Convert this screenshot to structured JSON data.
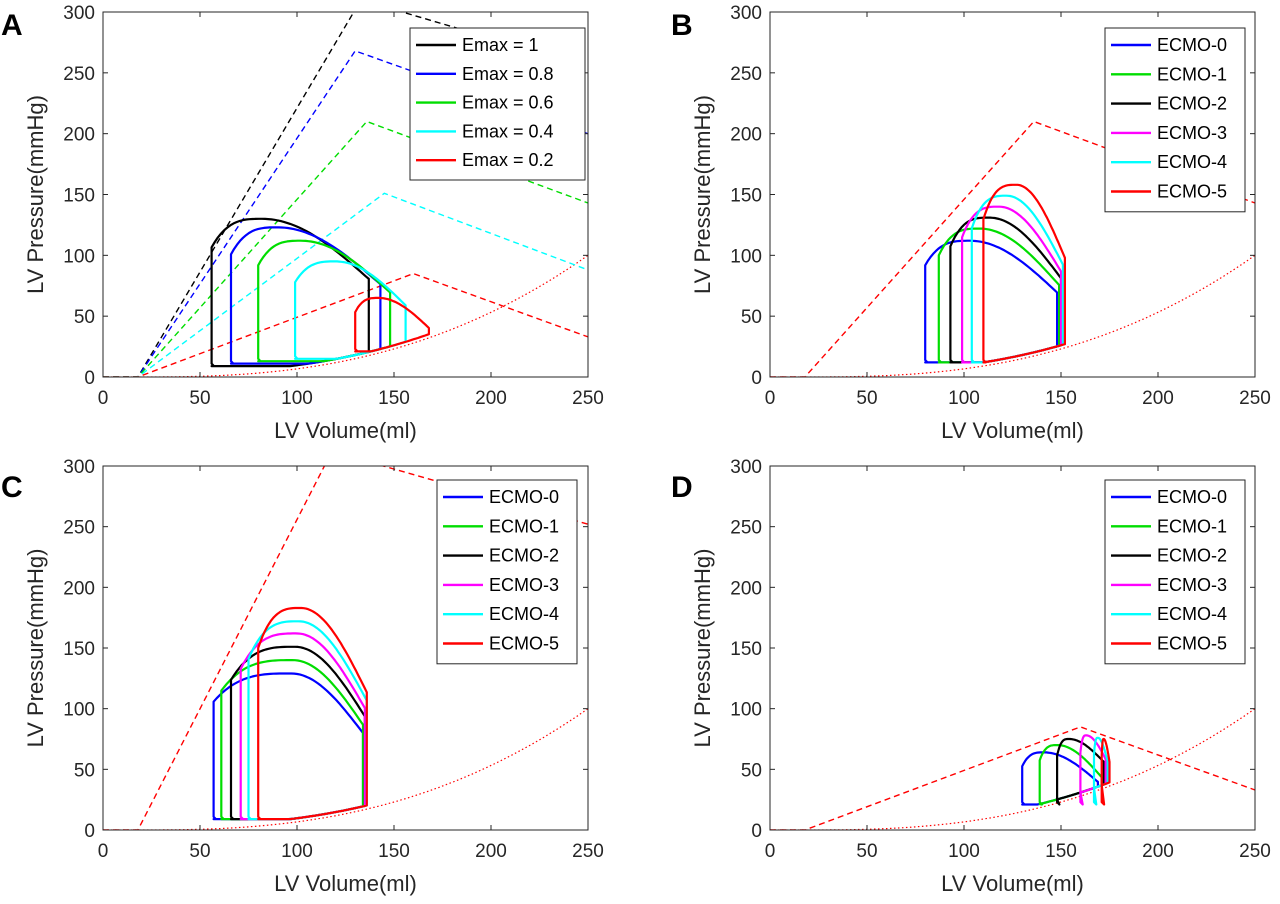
{
  "chart_data": [
    {
      "panel": "A",
      "type": "line",
      "xlabel": "LV Volume(ml)",
      "ylabel": "LV Pressure(mmHg)",
      "xlim": [
        0,
        250
      ],
      "ylim": [
        0,
        300
      ],
      "xticks": [
        0,
        50,
        100,
        150,
        200,
        250
      ],
      "yticks": [
        0,
        50,
        100,
        150,
        200,
        250,
        300
      ],
      "legend_position": "top-right",
      "espvr": {
        "v0": 18,
        "peak": [
          [
            133,
            310
          ],
          [
            130,
            268
          ],
          [
            136,
            210
          ],
          [
            145,
            151
          ],
          [
            160,
            85
          ]
        ],
        "end": [
          [
            250,
            255
          ],
          [
            250,
            200
          ],
          [
            250,
            143
          ],
          [
            250,
            88
          ],
          [
            250,
            33
          ]
        ]
      },
      "edpvr": {
        "v0": 18,
        "p250": 100
      },
      "series": [
        {
          "name": "Emax = 1",
          "color": "#000000",
          "ves": 56,
          "ved": 137,
          "psys": 130,
          "pmin": 9,
          "vpk": 82,
          "ped_beg": 9
        },
        {
          "name": "Emax = 0.8",
          "color": "#0000ff",
          "ves": 66,
          "ved": 143,
          "psys": 123,
          "pmin": 11,
          "vpk": 90,
          "ped_beg": 11
        },
        {
          "name": "Emax = 0.6",
          "color": "#00dd00",
          "ves": 80,
          "ved": 148,
          "psys": 112,
          "pmin": 13,
          "vpk": 102,
          "ped_beg": 13
        },
        {
          "name": "Emax = 0.4",
          "color": "#00ffff",
          "ves": 99,
          "ved": 156,
          "psys": 95,
          "pmin": 15,
          "vpk": 120,
          "ped_beg": 15
        },
        {
          "name": "Emax = 0.2",
          "color": "#ff0000",
          "ves": 130,
          "ved": 168,
          "psys": 65,
          "pmin": 21,
          "vpk": 142,
          "ped_beg": 21
        }
      ]
    },
    {
      "panel": "B",
      "type": "line",
      "xlabel": "LV Volume(ml)",
      "ylabel": "LV Pressure(mmHg)",
      "xlim": [
        0,
        250
      ],
      "ylim": [
        0,
        300
      ],
      "xticks": [
        0,
        50,
        100,
        150,
        200,
        250
      ],
      "yticks": [
        0,
        50,
        100,
        150,
        200,
        250,
        300
      ],
      "legend_position": "top-right",
      "espvr": {
        "v0": 18,
        "peak": [
          [
            136,
            210
          ]
        ],
        "end": [
          [
            250,
            143
          ]
        ]
      },
      "edpvr": {
        "v0": 18,
        "p250": 100
      },
      "series": [
        {
          "name": "ECMO-0",
          "color": "#0000ff",
          "ves": 80,
          "ved": 148,
          "psys": 112,
          "pmin": 12,
          "vpk": 103,
          "ped_beg": 12
        },
        {
          "name": "ECMO-1",
          "color": "#00dd00",
          "ves": 87,
          "ved": 149,
          "psys": 122,
          "pmin": 12,
          "vpk": 108,
          "ped_beg": 12
        },
        {
          "name": "ECMO-2",
          "color": "#000000",
          "ves": 93,
          "ved": 150,
          "psys": 131,
          "pmin": 12,
          "vpk": 113,
          "ped_beg": 12
        },
        {
          "name": "ECMO-3",
          "color": "#ff00ff",
          "ves": 99,
          "ved": 150,
          "psys": 140,
          "pmin": 12,
          "vpk": 118,
          "ped_beg": 12
        },
        {
          "name": "ECMO-4",
          "color": "#00ffff",
          "ves": 104,
          "ved": 151,
          "psys": 149,
          "pmin": 12,
          "vpk": 122,
          "ped_beg": 12
        },
        {
          "name": "ECMO-5",
          "color": "#ff0000",
          "ves": 110,
          "ved": 152,
          "psys": 158,
          "pmin": 12,
          "vpk": 127,
          "ped_beg": 12
        }
      ]
    },
    {
      "panel": "C",
      "type": "line",
      "xlabel": "LV Volume(ml)",
      "ylabel": "LV Pressure(mmHg)",
      "xlim": [
        0,
        250
      ],
      "ylim": [
        0,
        300
      ],
      "xticks": [
        0,
        50,
        100,
        150,
        200,
        250
      ],
      "yticks": [
        0,
        50,
        100,
        150,
        200,
        250,
        300
      ],
      "legend_position": "top-right",
      "espvr": {
        "v0": 18,
        "peak": [
          [
            118,
            312
          ]
        ],
        "end": [
          [
            250,
            252
          ]
        ]
      },
      "edpvr": {
        "v0": 18,
        "p250": 100
      },
      "series": [
        {
          "name": "ECMO-0",
          "color": "#0000ff",
          "ves": 57,
          "ved": 134,
          "psys": 129,
          "pmin": 9,
          "vpk": 97,
          "ped_beg": 9
        },
        {
          "name": "ECMO-1",
          "color": "#00dd00",
          "ves": 61,
          "ved": 134,
          "psys": 140,
          "pmin": 9,
          "vpk": 98,
          "ped_beg": 9
        },
        {
          "name": "ECMO-2",
          "color": "#000000",
          "ves": 66,
          "ved": 135,
          "psys": 151,
          "pmin": 9,
          "vpk": 99,
          "ped_beg": 9
        },
        {
          "name": "ECMO-3",
          "color": "#ff00ff",
          "ves": 71,
          "ved": 135,
          "psys": 162,
          "pmin": 9,
          "vpk": 100,
          "ped_beg": 9
        },
        {
          "name": "ECMO-4",
          "color": "#00ffff",
          "ves": 75,
          "ved": 136,
          "psys": 172,
          "pmin": 9,
          "vpk": 101,
          "ped_beg": 9
        },
        {
          "name": "ECMO-5",
          "color": "#ff0000",
          "ves": 80,
          "ved": 136,
          "psys": 183,
          "pmin": 9,
          "vpk": 102,
          "ped_beg": 9
        }
      ]
    },
    {
      "panel": "D",
      "type": "line",
      "xlabel": "LV Volume(ml)",
      "ylabel": "LV Pressure(mmHg)",
      "xlim": [
        0,
        250
      ],
      "ylim": [
        0,
        300
      ],
      "xticks": [
        0,
        50,
        100,
        150,
        200,
        250
      ],
      "yticks": [
        0,
        50,
        100,
        150,
        200,
        250,
        300
      ],
      "legend_position": "top-right",
      "espvr": {
        "v0": 18,
        "peak": [
          [
            160,
            85
          ]
        ],
        "end": [
          [
            250,
            33
          ]
        ]
      },
      "edpvr": {
        "v0": 18,
        "p250": 100
      },
      "series": [
        {
          "name": "ECMO-0",
          "color": "#0000ff",
          "ves": 130,
          "ved": 169,
          "psys": 64,
          "pmin": 21,
          "vpk": 141,
          "ped_beg": 21
        },
        {
          "name": "ECMO-1",
          "color": "#00dd00",
          "ves": 139,
          "ved": 171,
          "psys": 70,
          "pmin": 21,
          "vpk": 148,
          "ped_beg": 21
        },
        {
          "name": "ECMO-2",
          "color": "#000000",
          "ves": 148,
          "ved": 172,
          "psys": 75,
          "pmin": 21,
          "vpk": 154,
          "ped_beg": 21
        },
        {
          "name": "ECMO-3",
          "color": "#ff00ff",
          "ves": 160,
          "ved": 173,
          "psys": 78,
          "pmin": 21,
          "vpk": 163,
          "ped_beg": 21
        },
        {
          "name": "ECMO-4",
          "color": "#00ffff",
          "ves": 167,
          "ved": 174,
          "psys": 76,
          "pmin": 21,
          "vpk": 169,
          "ped_beg": 21
        },
        {
          "name": "ECMO-5",
          "color": "#ff0000",
          "ves": 171,
          "ved": 175,
          "psys": 75,
          "pmin": 21,
          "vpk": 172,
          "ped_beg": 21
        }
      ]
    }
  ]
}
